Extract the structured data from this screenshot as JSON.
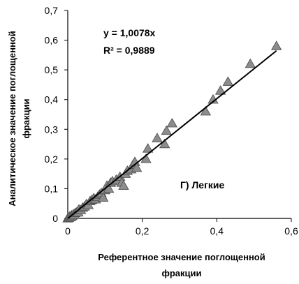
{
  "chart_data": {
    "type": "scatter",
    "title": "",
    "xlabel_lines": [
      "Референтное значение поглощенной",
      "фракции"
    ],
    "ylabel_lines": [
      "Аналитическое значение поглощенной",
      "фракции"
    ],
    "xlim": [
      0,
      0.6
    ],
    "ylim": [
      0,
      0.7
    ],
    "x_ticks": [
      0,
      0.2,
      0.4,
      0.6
    ],
    "x_tick_labels": [
      "0",
      "0,2",
      "0,4",
      "0,6"
    ],
    "y_ticks": [
      0,
      0.1,
      0.2,
      0.3,
      0.4,
      0.5,
      0.6,
      0.7
    ],
    "y_tick_labels": [
      "0",
      "0,1",
      "0,2",
      "0,3",
      "0,4",
      "0,5",
      "0,6",
      "0,7"
    ],
    "grid": false,
    "marker": "triangle",
    "marker_color": "#8c8c8c",
    "trendline": {
      "slope": 1.0078,
      "intercept": 0,
      "x_range": [
        0,
        0.56
      ]
    },
    "annotations": {
      "equation": "y = 1,0078x",
      "r_squared": "R² = 0,9889",
      "panel_label": "Г) Легкие"
    },
    "points": [
      {
        "x": 0.0,
        "y": 0.0
      },
      {
        "x": 0.003,
        "y": 0.002
      },
      {
        "x": 0.005,
        "y": 0.006
      },
      {
        "x": 0.008,
        "y": 0.004
      },
      {
        "x": 0.01,
        "y": 0.01
      },
      {
        "x": 0.012,
        "y": 0.008
      },
      {
        "x": 0.015,
        "y": 0.014
      },
      {
        "x": 0.018,
        "y": 0.012
      },
      {
        "x": 0.02,
        "y": 0.018
      },
      {
        "x": 0.025,
        "y": 0.022
      },
      {
        "x": 0.028,
        "y": 0.02
      },
      {
        "x": 0.03,
        "y": 0.03
      },
      {
        "x": 0.035,
        "y": 0.028
      },
      {
        "x": 0.04,
        "y": 0.036
      },
      {
        "x": 0.045,
        "y": 0.04
      },
      {
        "x": 0.05,
        "y": 0.048
      },
      {
        "x": 0.055,
        "y": 0.045
      },
      {
        "x": 0.06,
        "y": 0.058
      },
      {
        "x": 0.065,
        "y": 0.062
      },
      {
        "x": 0.07,
        "y": 0.068
      },
      {
        "x": 0.075,
        "y": 0.064
      },
      {
        "x": 0.08,
        "y": 0.072
      },
      {
        "x": 0.085,
        "y": 0.08
      },
      {
        "x": 0.09,
        "y": 0.085
      },
      {
        "x": 0.095,
        "y": 0.07
      },
      {
        "x": 0.1,
        "y": 0.095
      },
      {
        "x": 0.105,
        "y": 0.11
      },
      {
        "x": 0.11,
        "y": 0.1
      },
      {
        "x": 0.115,
        "y": 0.12
      },
      {
        "x": 0.12,
        "y": 0.125
      },
      {
        "x": 0.13,
        "y": 0.13
      },
      {
        "x": 0.14,
        "y": 0.14
      },
      {
        "x": 0.145,
        "y": 0.12
      },
      {
        "x": 0.15,
        "y": 0.11
      },
      {
        "x": 0.155,
        "y": 0.15
      },
      {
        "x": 0.16,
        "y": 0.16
      },
      {
        "x": 0.17,
        "y": 0.165
      },
      {
        "x": 0.175,
        "y": 0.18
      },
      {
        "x": 0.18,
        "y": 0.19
      },
      {
        "x": 0.185,
        "y": 0.17
      },
      {
        "x": 0.21,
        "y": 0.2
      },
      {
        "x": 0.215,
        "y": 0.235
      },
      {
        "x": 0.24,
        "y": 0.27
      },
      {
        "x": 0.26,
        "y": 0.25
      },
      {
        "x": 0.265,
        "y": 0.295
      },
      {
        "x": 0.28,
        "y": 0.32
      },
      {
        "x": 0.37,
        "y": 0.36
      },
      {
        "x": 0.39,
        "y": 0.4
      },
      {
        "x": 0.41,
        "y": 0.43
      },
      {
        "x": 0.43,
        "y": 0.46
      },
      {
        "x": 0.49,
        "y": 0.52
      },
      {
        "x": 0.56,
        "y": 0.58
      }
    ]
  }
}
